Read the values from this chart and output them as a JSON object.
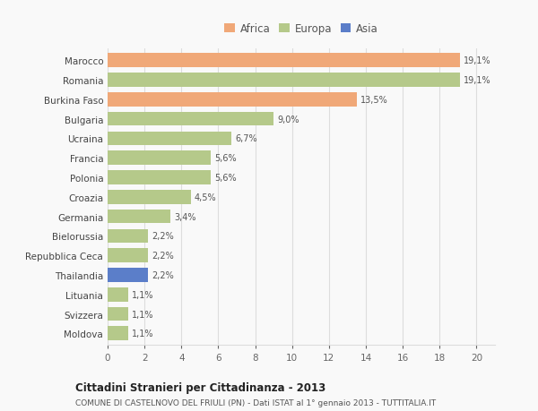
{
  "categories": [
    "Marocco",
    "Romania",
    "Burkina Faso",
    "Bulgaria",
    "Ucraina",
    "Francia",
    "Polonia",
    "Croazia",
    "Germania",
    "Bielorussia",
    "Repubblica Ceca",
    "Thailandia",
    "Lituania",
    "Svizzera",
    "Moldova"
  ],
  "values": [
    19.1,
    19.1,
    13.5,
    9.0,
    6.7,
    5.6,
    5.6,
    4.5,
    3.4,
    2.2,
    2.2,
    2.2,
    1.1,
    1.1,
    1.1
  ],
  "labels": [
    "19,1%",
    "19,1%",
    "13,5%",
    "9,0%",
    "6,7%",
    "5,6%",
    "5,6%",
    "4,5%",
    "3,4%",
    "2,2%",
    "2,2%",
    "2,2%",
    "1,1%",
    "1,1%",
    "1,1%"
  ],
  "continents": [
    "Africa",
    "Europa",
    "Africa",
    "Europa",
    "Europa",
    "Europa",
    "Europa",
    "Europa",
    "Europa",
    "Europa",
    "Europa",
    "Asia",
    "Europa",
    "Europa",
    "Europa"
  ],
  "colors": {
    "Africa": "#f0a878",
    "Europa": "#b5c98a",
    "Asia": "#5b7ec9"
  },
  "legend_labels": [
    "Africa",
    "Europa",
    "Asia"
  ],
  "legend_colors": [
    "#f0a878",
    "#b5c98a",
    "#5b7ec9"
  ],
  "xlim": [
    0,
    21
  ],
  "xticks": [
    0,
    2,
    4,
    6,
    8,
    10,
    12,
    14,
    16,
    18,
    20
  ],
  "title": "Cittadini Stranieri per Cittadinanza - 2013",
  "subtitle": "COMUNE DI CASTELNOVO DEL FRIULI (PN) - Dati ISTAT al 1° gennaio 2013 - TUTTITALIA.IT",
  "bg_color": "#f9f9f9",
  "grid_color": "#dddddd",
  "bar_height": 0.72
}
